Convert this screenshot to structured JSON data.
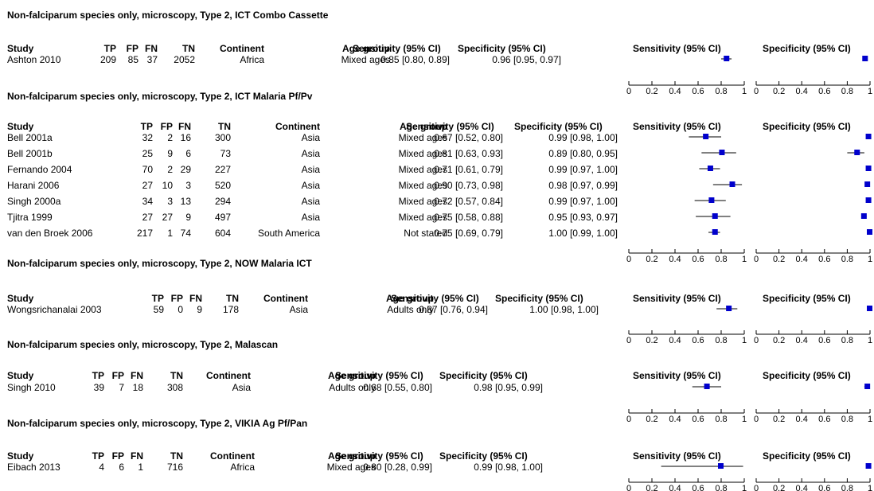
{
  "plot": {
    "marker_color": "#0000cc"
  },
  "headers": {
    "study": "Study",
    "tp": "TP",
    "fp": "FP",
    "fn": "FN",
    "tn": "TN",
    "continent": "Continent",
    "age": "Age group",
    "sens": "Sensitivity (95% CI)",
    "spec": "Specificity (95% CI)",
    "plot_sens": "Sensitivity (95% CI)",
    "plot_spec": "Specificity (95% CI)"
  },
  "axis": {
    "ticks": [
      "0",
      "0.2",
      "0.4",
      "0.6",
      "0.8",
      "1"
    ],
    "min": 0,
    "max": 1
  },
  "sections": [
    {
      "title": "Non-falciparum species only, microscopy, Type 2, ICT Combo Cassette",
      "rows": [
        {
          "study": "Ashton 2010",
          "tp": "209",
          "fp": "85",
          "fn": "37",
          "tn": "2052",
          "continent": "Africa",
          "age": "Mixed ages",
          "sens_text": "0.85 [0.80, 0.89]",
          "spec_text": "0.96 [0.95, 0.97]",
          "sens": [
            0.85,
            0.8,
            0.89
          ],
          "spec": [
            0.96,
            0.95,
            0.97
          ]
        }
      ]
    },
    {
      "title": "Non-falciparum species only, microscopy, Type 2, ICT Malaria Pf/Pv",
      "rows": [
        {
          "study": "Bell 2001a",
          "tp": "32",
          "fp": "2",
          "fn": "16",
          "tn": "300",
          "continent": "Asia",
          "age": "Mixed ages",
          "sens_text": "0.67 [0.52, 0.80]",
          "spec_text": "0.99 [0.98, 1.00]",
          "sens": [
            0.67,
            0.52,
            0.8
          ],
          "spec": [
            0.99,
            0.98,
            1.0
          ]
        },
        {
          "study": "Bell 2001b",
          "tp": "25",
          "fp": "9",
          "fn": "6",
          "tn": "73",
          "continent": "Asia",
          "age": "Mixed ages",
          "sens_text": "0.81 [0.63, 0.93]",
          "spec_text": "0.89 [0.80, 0.95]",
          "sens": [
            0.81,
            0.63,
            0.93
          ],
          "spec": [
            0.89,
            0.8,
            0.95
          ]
        },
        {
          "study": "Fernando 2004",
          "tp": "70",
          "fp": "2",
          "fn": "29",
          "tn": "227",
          "continent": "Asia",
          "age": "Mixed ages",
          "sens_text": "0.71 [0.61, 0.79]",
          "spec_text": "0.99 [0.97, 1.00]",
          "sens": [
            0.71,
            0.61,
            0.79
          ],
          "spec": [
            0.99,
            0.97,
            1.0
          ]
        },
        {
          "study": "Harani 2006",
          "tp": "27",
          "fp": "10",
          "fn": "3",
          "tn": "520",
          "continent": "Asia",
          "age": "Mixed ages",
          "sens_text": "0.90 [0.73, 0.98]",
          "spec_text": "0.98 [0.97, 0.99]",
          "sens": [
            0.9,
            0.73,
            0.98
          ],
          "spec": [
            0.98,
            0.97,
            0.99
          ]
        },
        {
          "study": "Singh 2000a",
          "tp": "34",
          "fp": "3",
          "fn": "13",
          "tn": "294",
          "continent": "Asia",
          "age": "Mixed ages",
          "sens_text": "0.72 [0.57, 0.84]",
          "spec_text": "0.99 [0.97, 1.00]",
          "sens": [
            0.72,
            0.57,
            0.84
          ],
          "spec": [
            0.99,
            0.97,
            1.0
          ]
        },
        {
          "study": "Tjitra 1999",
          "tp": "27",
          "fp": "27",
          "fn": "9",
          "tn": "497",
          "continent": "Asia",
          "age": "Mixed ages",
          "sens_text": "0.75 [0.58, 0.88]",
          "spec_text": "0.95 [0.93, 0.97]",
          "sens": [
            0.75,
            0.58,
            0.88
          ],
          "spec": [
            0.95,
            0.93,
            0.97
          ]
        },
        {
          "study": "van den Broek 2006",
          "tp": "217",
          "fp": "1",
          "fn": "74",
          "tn": "604",
          "continent": "South America",
          "age": "Not stated",
          "sens_text": "0.75 [0.69, 0.79]",
          "spec_text": "1.00 [0.99, 1.00]",
          "sens": [
            0.75,
            0.69,
            0.79
          ],
          "spec": [
            1.0,
            0.99,
            1.0
          ]
        }
      ]
    },
    {
      "title": "Non-falciparum species only, microscopy, Type 2, NOW Malaria ICT",
      "rows": [
        {
          "study": "Wongsrichanalai 2003",
          "tp": "59",
          "fp": "0",
          "fn": "9",
          "tn": "178",
          "continent": "Asia",
          "age": "Adults only",
          "sens_text": "0.87 [0.76, 0.94]",
          "spec_text": "1.00 [0.98, 1.00]",
          "sens": [
            0.87,
            0.76,
            0.94
          ],
          "spec": [
            1.0,
            0.98,
            1.0
          ]
        }
      ]
    },
    {
      "title": "Non-falciparum species only, microscopy, Type 2, Malascan",
      "rows": [
        {
          "study": "Singh 2010",
          "tp": "39",
          "fp": "7",
          "fn": "18",
          "tn": "308",
          "continent": "Asia",
          "age": "Adults only",
          "sens_text": "0.68 [0.55, 0.80]",
          "spec_text": "0.98 [0.95, 0.99]",
          "sens": [
            0.68,
            0.55,
            0.8
          ],
          "spec": [
            0.98,
            0.95,
            0.99
          ]
        }
      ]
    },
    {
      "title": "Non-falciparum species only, microscopy, Type 2, VIKIA Ag Pf/Pan",
      "rows": [
        {
          "study": "Eibach 2013",
          "tp": "4",
          "fp": "6",
          "fn": "1",
          "tn": "716",
          "continent": "Africa",
          "age": "Mixed ages",
          "sens_text": "0.80 [0.28, 0.99]",
          "spec_text": "0.99 [0.98, 1.00]",
          "sens": [
            0.8,
            0.28,
            0.99
          ],
          "spec": [
            0.99,
            0.98,
            1.0
          ]
        }
      ]
    }
  ],
  "chart_data": {
    "type": "forest",
    "measures": [
      "Sensitivity (95% CI)",
      "Specificity (95% CI)"
    ],
    "xlim": [
      0,
      1
    ],
    "x_ticks": [
      0,
      0.2,
      0.4,
      0.6,
      0.8,
      1
    ],
    "groups": [
      {
        "name": "Non-falciparum species only, microscopy, Type 2, ICT Combo Cassette",
        "studies": [
          {
            "study": "Ashton 2010",
            "sensitivity": [
              0.85,
              0.8,
              0.89
            ],
            "specificity": [
              0.96,
              0.95,
              0.97
            ]
          }
        ]
      },
      {
        "name": "Non-falciparum species only, microscopy, Type 2, ICT Malaria Pf/Pv",
        "studies": [
          {
            "study": "Bell 2001a",
            "sensitivity": [
              0.67,
              0.52,
              0.8
            ],
            "specificity": [
              0.99,
              0.98,
              1.0
            ]
          },
          {
            "study": "Bell 2001b",
            "sensitivity": [
              0.81,
              0.63,
              0.93
            ],
            "specificity": [
              0.89,
              0.8,
              0.95
            ]
          },
          {
            "study": "Fernando 2004",
            "sensitivity": [
              0.71,
              0.61,
              0.79
            ],
            "specificity": [
              0.99,
              0.97,
              1.0
            ]
          },
          {
            "study": "Harani 2006",
            "sensitivity": [
              0.9,
              0.73,
              0.98
            ],
            "specificity": [
              0.98,
              0.97,
              0.99
            ]
          },
          {
            "study": "Singh 2000a",
            "sensitivity": [
              0.72,
              0.57,
              0.84
            ],
            "specificity": [
              0.99,
              0.97,
              1.0
            ]
          },
          {
            "study": "Tjitra 1999",
            "sensitivity": [
              0.75,
              0.58,
              0.88
            ],
            "specificity": [
              0.95,
              0.93,
              0.97
            ]
          },
          {
            "study": "van den Broek 2006",
            "sensitivity": [
              0.75,
              0.69,
              0.79
            ],
            "specificity": [
              1.0,
              0.99,
              1.0
            ]
          }
        ]
      },
      {
        "name": "Non-falciparum species only, microscopy, Type 2, NOW Malaria ICT",
        "studies": [
          {
            "study": "Wongsrichanalai 2003",
            "sensitivity": [
              0.87,
              0.76,
              0.94
            ],
            "specificity": [
              1.0,
              0.98,
              1.0
            ]
          }
        ]
      },
      {
        "name": "Non-falciparum species only, microscopy, Type 2, Malascan",
        "studies": [
          {
            "study": "Singh 2010",
            "sensitivity": [
              0.68,
              0.55,
              0.8
            ],
            "specificity": [
              0.98,
              0.95,
              0.99
            ]
          }
        ]
      },
      {
        "name": "Non-falciparum species only, microscopy, Type 2, VIKIA Ag Pf/Pan",
        "studies": [
          {
            "study": "Eibach 2013",
            "sensitivity": [
              0.8,
              0.28,
              0.99
            ],
            "specificity": [
              0.99,
              0.98,
              1.0
            ]
          }
        ]
      }
    ]
  }
}
